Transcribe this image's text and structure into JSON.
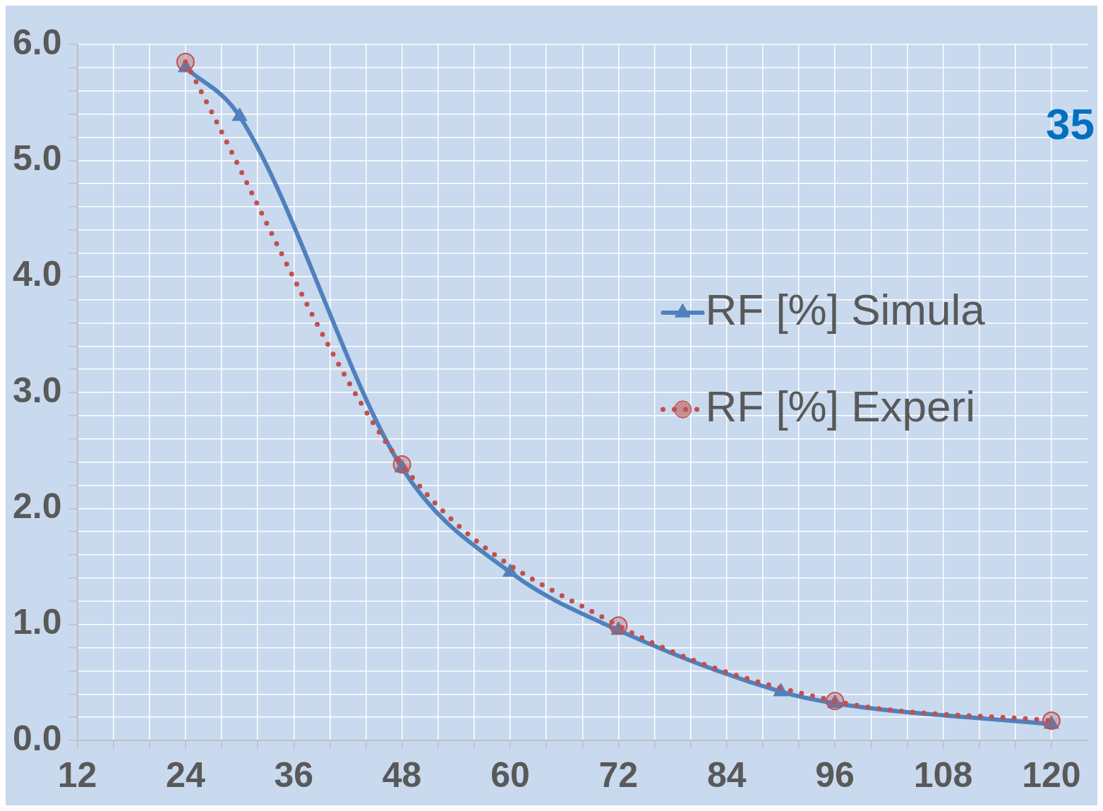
{
  "chart_data": {
    "type": "line",
    "annotations": [
      "35"
    ],
    "legend": "right",
    "grid": true,
    "xlim": [
      12,
      124
    ],
    "xticks": [
      12,
      {
        "value": 16,
        "label": null
      },
      {
        "value": 20,
        "label": null
      },
      24,
      {
        "value": 28,
        "label": null
      },
      {
        "value": 32,
        "label": null
      },
      36,
      {
        "value": 40,
        "label": null
      },
      {
        "value": 44,
        "label": null
      },
      48,
      {
        "value": 52,
        "label": null
      },
      {
        "value": 56,
        "label": null
      },
      60,
      {
        "value": 64,
        "label": null
      },
      {
        "value": 68,
        "label": null
      },
      72,
      {
        "value": 76,
        "label": null
      },
      {
        "value": 80,
        "label": null
      },
      84,
      {
        "value": 88,
        "label": null
      },
      {
        "value": 92,
        "label": null
      },
      96,
      {
        "value": 100,
        "label": null
      },
      {
        "value": 104,
        "label": null
      },
      108,
      {
        "value": 112,
        "label": null
      },
      {
        "value": 116,
        "label": null
      },
      120
    ],
    "ylim": [
      0,
      6
    ],
    "yticks": [
      {
        "value": 0,
        "label": "0.0"
      },
      {
        "value": 0.2,
        "label": null
      },
      {
        "value": 0.4,
        "label": null
      },
      {
        "value": 0.6,
        "label": null
      },
      {
        "value": 0.8,
        "label": null
      },
      {
        "value": 1,
        "label": "1.0"
      },
      {
        "value": 1.2,
        "label": null
      },
      {
        "value": 1.4,
        "label": null
      },
      {
        "value": 1.6,
        "label": null
      },
      {
        "value": 1.8,
        "label": null
      },
      {
        "value": 2,
        "label": "2.0"
      },
      {
        "value": 2.2,
        "label": null
      },
      {
        "value": 2.4,
        "label": null
      },
      {
        "value": 2.6,
        "label": null
      },
      {
        "value": 2.8,
        "label": null
      },
      {
        "value": 3,
        "label": "3.0"
      },
      {
        "value": 3.2,
        "label": null
      },
      {
        "value": 3.4,
        "label": null
      },
      {
        "value": 3.6,
        "label": null
      },
      {
        "value": 3.8,
        "label": null
      },
      {
        "value": 4,
        "label": "4.0"
      },
      {
        "value": 4.2,
        "label": null
      },
      {
        "value": 4.4,
        "label": null
      },
      {
        "value": 4.6,
        "label": null
      },
      {
        "value": 4.8,
        "label": null
      },
      {
        "value": 5,
        "label": "5.0"
      },
      {
        "value": 5.2,
        "label": null
      },
      {
        "value": 5.4,
        "label": null
      },
      {
        "value": 5.6,
        "label": null
      },
      {
        "value": 5.8,
        "label": null
      },
      {
        "value": 6,
        "label": "6.0"
      }
    ],
    "series": [
      {
        "name": "RF [%] Simula",
        "color": "#4f81bd",
        "marker": "triangle",
        "line_style": "solid",
        "x": [
          24,
          30,
          48,
          60,
          72,
          90,
          96,
          120
        ],
        "values": [
          5.8,
          5.38,
          2.35,
          1.45,
          0.95,
          0.42,
          0.32,
          0.14
        ]
      },
      {
        "name": "RF [%] Experi",
        "color": "#c0504d",
        "marker": "circle",
        "line_style": "dotted",
        "x": [
          24,
          48,
          72,
          96,
          120
        ],
        "values": [
          5.85,
          2.38,
          0.99,
          0.34,
          0.17
        ]
      }
    ]
  }
}
